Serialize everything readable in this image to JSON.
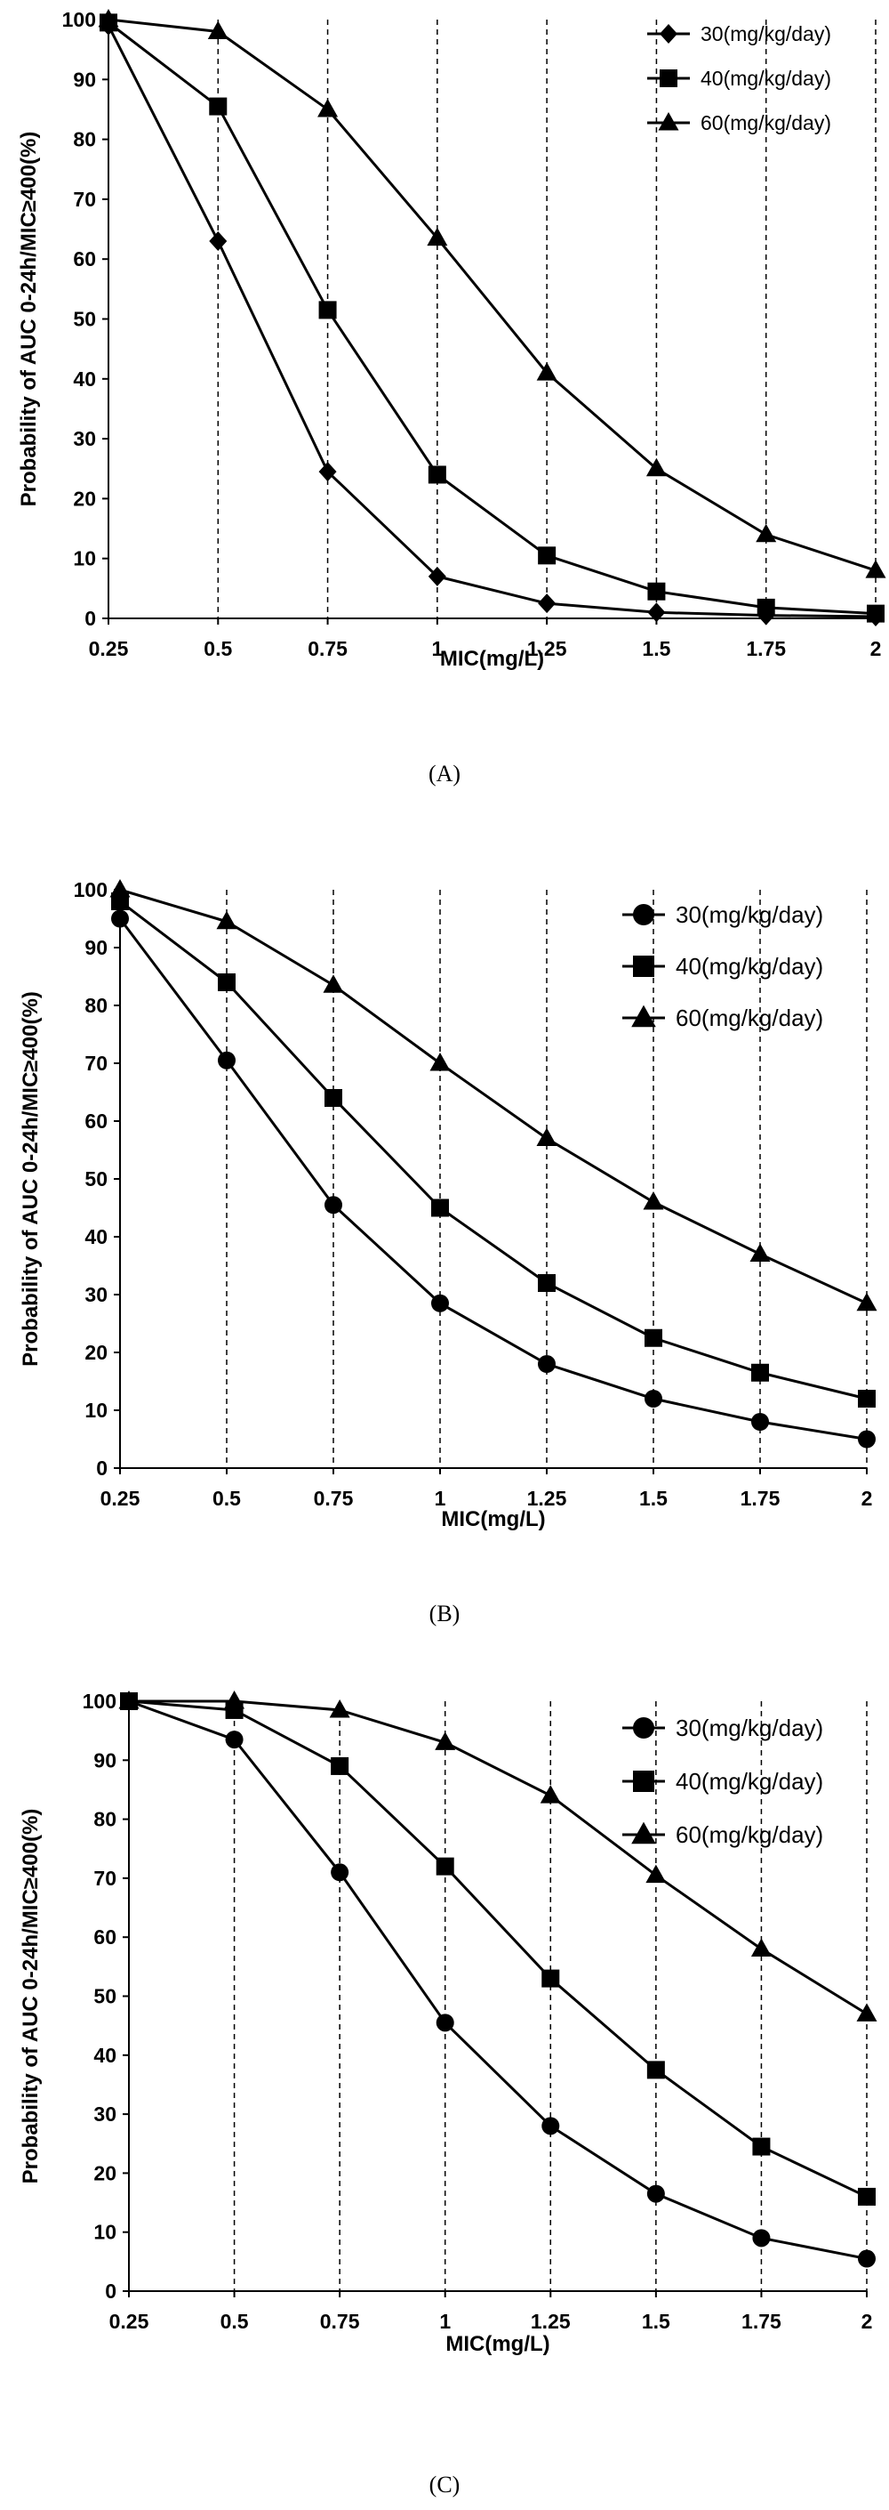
{
  "chart_data": [
    {
      "type": "line",
      "panel_label": "(A)",
      "x": [
        0.25,
        0.5,
        0.75,
        1,
        1.25,
        1.5,
        1.75,
        2
      ],
      "categories": [
        "0.25",
        "0.5",
        "0.75",
        "1",
        "1.25",
        "1.5",
        "1.75",
        "2"
      ],
      "xlabel": "MIC(mg/L)",
      "ylabel": "Probability of AUC 0-24h/MIC≥400(%)",
      "ylim": [
        0,
        100
      ],
      "yticks": [
        0,
        10,
        20,
        30,
        40,
        50,
        60,
        70,
        80,
        90,
        100
      ],
      "grid": "vertical dashed",
      "legend": "top-right",
      "series": [
        {
          "name": "30(mg/kg/day)",
          "marker": "diamond",
          "values": [
            99,
            63,
            24.5,
            7,
            2.5,
            1,
            0.5,
            0.3
          ]
        },
        {
          "name": "40(mg/kg/day)",
          "marker": "square",
          "values": [
            99.5,
            85.5,
            51.5,
            24,
            10.5,
            4.5,
            1.8,
            0.8
          ]
        },
        {
          "name": "60(mg/kg/day)",
          "marker": "triangle",
          "values": [
            100,
            98,
            85,
            63.5,
            41,
            25,
            14,
            8
          ]
        }
      ]
    },
    {
      "type": "line",
      "panel_label": "(B)",
      "x": [
        0.25,
        0.5,
        0.75,
        1,
        1.25,
        1.5,
        1.75,
        2
      ],
      "categories": [
        "0.25",
        "0.5",
        "0.75",
        "1",
        "1.25",
        "1.5",
        "1.75",
        "2"
      ],
      "xlabel": "MIC(mg/L)",
      "ylabel": "Probability of AUC 0-24h/MIC≥400(%)",
      "ylim": [
        0,
        100
      ],
      "yticks": [
        0,
        10,
        20,
        30,
        40,
        50,
        60,
        70,
        80,
        90,
        100
      ],
      "grid": "vertical dashed",
      "legend": "top-right",
      "series": [
        {
          "name": "30(mg/kg/day)",
          "marker": "circle",
          "values": [
            95,
            70.5,
            45.5,
            28.5,
            18,
            12,
            8,
            5
          ]
        },
        {
          "name": "40(mg/kg/day)",
          "marker": "square",
          "values": [
            98,
            84,
            64,
            45,
            32,
            22.5,
            16.5,
            12
          ]
        },
        {
          "name": "60(mg/kg/day)",
          "marker": "triangle",
          "values": [
            100,
            94.5,
            83.5,
            70,
            57,
            46,
            37,
            28.5
          ]
        }
      ]
    },
    {
      "type": "line",
      "panel_label": "(C)",
      "x": [
        0.25,
        0.5,
        0.75,
        1,
        1.25,
        1.5,
        1.75,
        2
      ],
      "categories": [
        "0.25",
        "0.5",
        "0.75",
        "1",
        "1.25",
        "1.5",
        "1.75",
        "2"
      ],
      "xlabel": "MIC(mg/L)",
      "ylabel": "Probability of AUC 0-24h/MIC≥400(%)",
      "ylim": [
        0,
        100
      ],
      "yticks": [
        0,
        10,
        20,
        30,
        40,
        50,
        60,
        70,
        80,
        90,
        100
      ],
      "grid": "vertical dashed",
      "legend": "top-right",
      "series": [
        {
          "name": "30(mg/kg/day)",
          "marker": "circle",
          "values": [
            100,
            93.5,
            71,
            45.5,
            28,
            16.5,
            9,
            5.5
          ]
        },
        {
          "name": "40(mg/kg/day)",
          "marker": "square",
          "values": [
            100,
            98.5,
            89,
            72,
            53,
            37.5,
            24.5,
            16
          ]
        },
        {
          "name": "60(mg/kg/day)",
          "marker": "triangle",
          "values": [
            100,
            100,
            98.5,
            93,
            84,
            70.5,
            58,
            47
          ]
        }
      ]
    }
  ]
}
